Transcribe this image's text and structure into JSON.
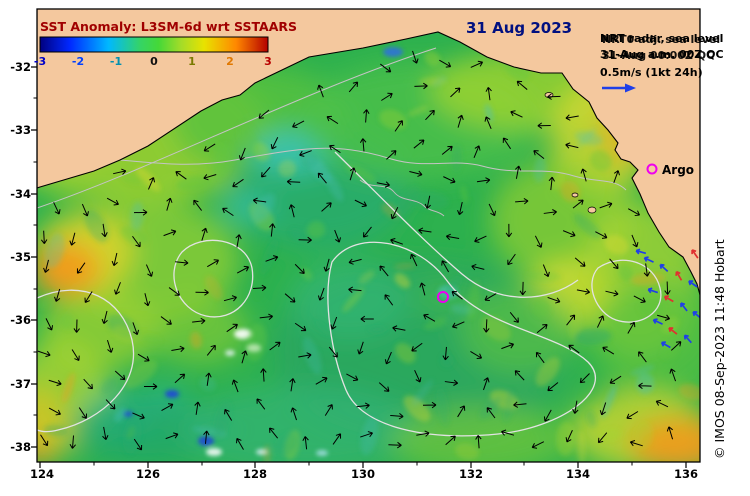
{
  "title": "SST Anomaly: L3SM-6d wrt SSTAARS",
  "date_label": "31 Aug 2023",
  "colorbar": {
    "tick_labels": [
      "-3",
      "-2",
      "-1",
      "0",
      "1",
      "2",
      "3"
    ],
    "tick_colors": [
      "#0000c8",
      "#0040ff",
      "#0090b0",
      "#101010",
      "#7a7a00",
      "#e07800",
      "#b80000"
    ]
  },
  "annotations": {
    "nrt_a_line1": "NRT radar, sea level",
    "nrt_a_line2": "31-Aug a.m. 00Z QC",
    "nrt_b_line1": "NRT0 adj. sea level",
    "nrt_b_line2": "31-Aug 00:00Z QC",
    "vector_scale": "0.5m/s (1kt 24h)",
    "argo_label": "Argo"
  },
  "axes": {
    "x_ticks": [
      "124",
      "126",
      "128",
      "130",
      "132",
      "134",
      "136"
    ],
    "y_ticks": [
      "-32",
      "-33",
      "-34",
      "-35",
      "-36",
      "-37",
      "-38"
    ]
  },
  "credit": "© IMOS 08-Sep-2023 11:48 Hobart",
  "colors": {
    "title": "#a00000",
    "date": "#001080",
    "argo_magenta": "#ee00ee",
    "vector_blue": "#1f3fe8",
    "vector_red": "#e03030",
    "land": "#f4c89e"
  }
}
